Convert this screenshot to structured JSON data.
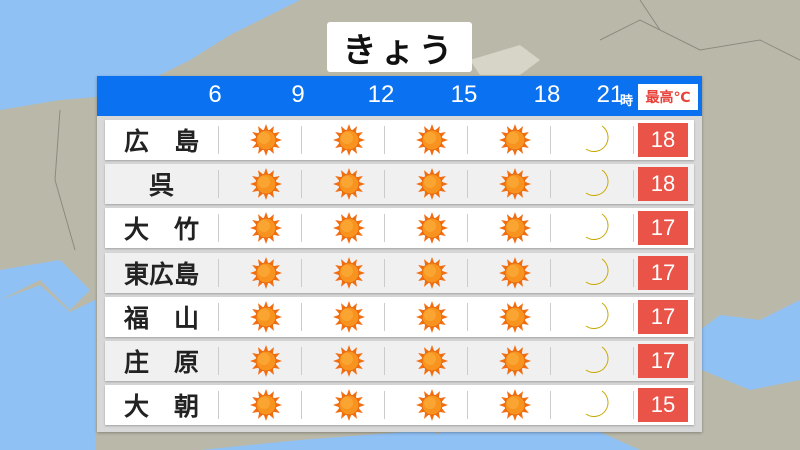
{
  "title": "きょう",
  "header": {
    "hours": [
      "6",
      "9",
      "12",
      "15",
      "18",
      "21"
    ],
    "hour_unit": "時",
    "max_temp_label": "最高℃"
  },
  "colors": {
    "header_blue": "#0a72f0",
    "temp_red": "#ea5448",
    "sun_orange": "#f7931e",
    "moon_yellow": "#f5e040",
    "sea": "#8fc1f5",
    "land": "#bab9a9"
  },
  "rows": [
    {
      "name": "広　島",
      "weather": [
        "sun-icon",
        "sun-icon",
        "sun-icon",
        "sun-icon",
        "moon-icon"
      ],
      "max_temp": "18"
    },
    {
      "name": "呉",
      "weather": [
        "sun-icon",
        "sun-icon",
        "sun-icon",
        "sun-icon",
        "moon-icon"
      ],
      "max_temp": "18"
    },
    {
      "name": "大　竹",
      "weather": [
        "sun-icon",
        "sun-icon",
        "sun-icon",
        "sun-icon",
        "moon-icon"
      ],
      "max_temp": "17"
    },
    {
      "name": "東広島",
      "weather": [
        "sun-icon",
        "sun-icon",
        "sun-icon",
        "sun-icon",
        "moon-icon"
      ],
      "max_temp": "17"
    },
    {
      "name": "福　山",
      "weather": [
        "sun-icon",
        "sun-icon",
        "sun-icon",
        "sun-icon",
        "moon-icon"
      ],
      "max_temp": "17"
    },
    {
      "name": "庄　原",
      "weather": [
        "sun-icon",
        "sun-icon",
        "sun-icon",
        "sun-icon",
        "moon-icon"
      ],
      "max_temp": "17"
    },
    {
      "name": "大　朝",
      "weather": [
        "sun-icon",
        "sun-icon",
        "sun-icon",
        "sun-icon",
        "moon-icon"
      ],
      "max_temp": "15"
    }
  ]
}
